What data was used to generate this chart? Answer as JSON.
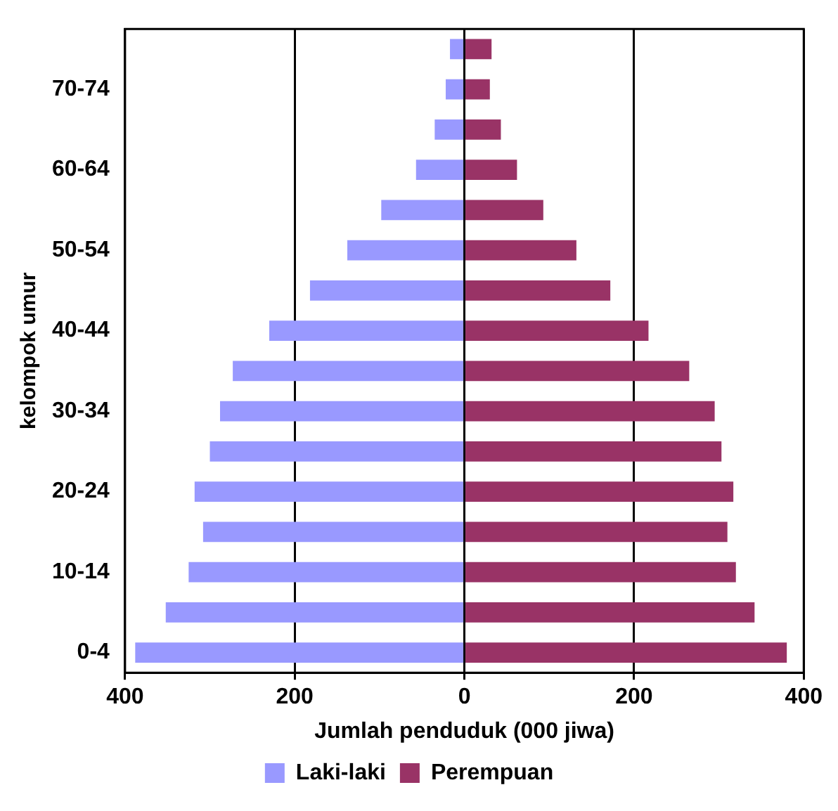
{
  "chart_data": {
    "type": "bar",
    "orientation": "horizontal",
    "stacked": true,
    "xlabel": "Jumlah penduduk (000 jiwa)",
    "ylabel": "kelompok umur",
    "categories": [
      null,
      "70-74",
      null,
      "60-64",
      null,
      "50-54",
      null,
      "40-44",
      null,
      "30-34",
      null,
      "20-24",
      null,
      "10-14",
      null,
      "0-4"
    ],
    "series": [
      {
        "name": "Laki-laki",
        "color": "#9999ff",
        "values": [
          -17,
          -22,
          -35,
          -57,
          -98,
          -138,
          -182,
          -230,
          -273,
          -288,
          -300,
          -318,
          -308,
          -325,
          -352,
          -388
        ]
      },
      {
        "name": "Perempuan",
        "color": "#993366",
        "values": [
          32,
          30,
          43,
          62,
          93,
          132,
          172,
          217,
          265,
          295,
          303,
          317,
          310,
          320,
          342,
          380
        ]
      }
    ],
    "xlim": [
      -400,
      400
    ],
    "xticks": [
      {
        "value": -400,
        "label": "400"
      },
      {
        "value": -200,
        "label": "200"
      },
      {
        "value": 0,
        "label": "0"
      },
      {
        "value": 200,
        "label": "200"
      },
      {
        "value": 400,
        "label": "400"
      }
    ],
    "grid": "x",
    "legend": "bottom"
  }
}
